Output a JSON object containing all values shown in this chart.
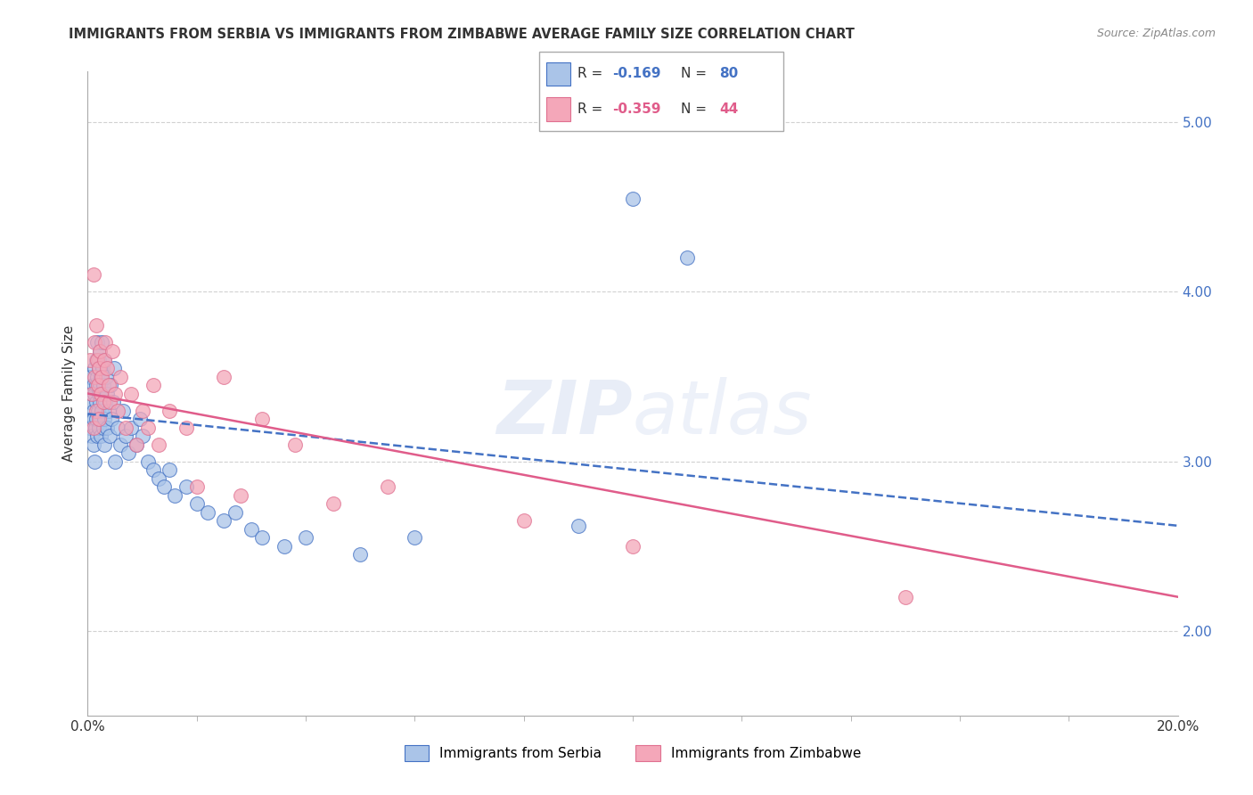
{
  "title": "IMMIGRANTS FROM SERBIA VS IMMIGRANTS FROM ZIMBABWE AVERAGE FAMILY SIZE CORRELATION CHART",
  "source": "Source: ZipAtlas.com",
  "ylabel": "Average Family Size",
  "xlim": [
    0.0,
    0.2
  ],
  "ylim": [
    1.5,
    5.3
  ],
  "yticks_right": [
    2.0,
    3.0,
    4.0,
    5.0
  ],
  "serbia_color": "#aac4e8",
  "serbia_edge_color": "#4472c4",
  "zimbabwe_color": "#f4a7b9",
  "zimbabwe_edge_color": "#e07090",
  "serbia_line_color": "#4472c4",
  "zimbabwe_line_color": "#e05c8a",
  "serbia_label": "Immigrants from Serbia",
  "zimbabwe_label": "Immigrants from Zimbabwe",
  "serbia_x": [
    0.0005,
    0.0005,
    0.0005,
    0.0008,
    0.0008,
    0.001,
    0.001,
    0.001,
    0.001,
    0.0012,
    0.0012,
    0.0013,
    0.0014,
    0.0015,
    0.0015,
    0.0016,
    0.0016,
    0.0017,
    0.0018,
    0.0018,
    0.0019,
    0.002,
    0.002,
    0.0021,
    0.0021,
    0.0022,
    0.0022,
    0.0023,
    0.0023,
    0.0024,
    0.0024,
    0.0025,
    0.0025,
    0.0026,
    0.0027,
    0.0028,
    0.0029,
    0.003,
    0.003,
    0.0031,
    0.0032,
    0.0033,
    0.0035,
    0.0036,
    0.0038,
    0.004,
    0.0042,
    0.0044,
    0.0046,
    0.0048,
    0.005,
    0.0055,
    0.006,
    0.0065,
    0.007,
    0.0075,
    0.008,
    0.009,
    0.0095,
    0.01,
    0.011,
    0.012,
    0.013,
    0.014,
    0.015,
    0.016,
    0.018,
    0.02,
    0.022,
    0.025,
    0.027,
    0.03,
    0.032,
    0.036,
    0.04,
    0.05,
    0.06,
    0.09,
    0.1,
    0.11
  ],
  "serbia_y": [
    3.35,
    3.2,
    3.5,
    3.15,
    3.4,
    3.3,
    3.1,
    3.25,
    3.45,
    3.55,
    3.0,
    3.4,
    3.2,
    3.35,
    3.6,
    3.45,
    3.25,
    3.5,
    3.15,
    3.7,
    3.3,
    3.6,
    3.4,
    3.2,
    3.55,
    3.45,
    3.25,
    3.35,
    3.65,
    3.15,
    3.5,
    3.3,
    3.7,
    3.4,
    3.55,
    3.2,
    3.45,
    3.25,
    3.6,
    3.1,
    3.35,
    3.5,
    3.2,
    3.4,
    3.3,
    3.15,
    3.45,
    3.25,
    3.35,
    3.55,
    3.0,
    3.2,
    3.1,
    3.3,
    3.15,
    3.05,
    3.2,
    3.1,
    3.25,
    3.15,
    3.0,
    2.95,
    2.9,
    2.85,
    2.95,
    2.8,
    2.85,
    2.75,
    2.7,
    2.65,
    2.7,
    2.6,
    2.55,
    2.5,
    2.55,
    2.45,
    2.55,
    2.62,
    4.55,
    4.2
  ],
  "zimbabwe_x": [
    0.0005,
    0.0008,
    0.001,
    0.001,
    0.0012,
    0.0013,
    0.0015,
    0.0016,
    0.0018,
    0.0019,
    0.002,
    0.0021,
    0.0022,
    0.0024,
    0.0026,
    0.0028,
    0.003,
    0.0032,
    0.0035,
    0.0038,
    0.004,
    0.0045,
    0.005,
    0.0055,
    0.006,
    0.007,
    0.008,
    0.009,
    0.01,
    0.011,
    0.012,
    0.013,
    0.015,
    0.018,
    0.02,
    0.025,
    0.028,
    0.032,
    0.038,
    0.045,
    0.055,
    0.08,
    0.1,
    0.15
  ],
  "zimbabwe_y": [
    3.6,
    3.4,
    4.1,
    3.2,
    3.7,
    3.5,
    3.8,
    3.3,
    3.6,
    3.45,
    3.55,
    3.25,
    3.65,
    3.4,
    3.5,
    3.35,
    3.6,
    3.7,
    3.55,
    3.45,
    3.35,
    3.65,
    3.4,
    3.3,
    3.5,
    3.2,
    3.4,
    3.1,
    3.3,
    3.2,
    3.45,
    3.1,
    3.3,
    3.2,
    2.85,
    3.5,
    2.8,
    3.25,
    3.1,
    2.75,
    2.85,
    2.65,
    2.5,
    2.2
  ],
  "watermark_text": "ZIPatlas",
  "grid_color": "#cccccc",
  "title_fontsize": 10.5,
  "axis_fontsize": 11,
  "source_fontsize": 9,
  "right_tick_color": "#4472c4"
}
